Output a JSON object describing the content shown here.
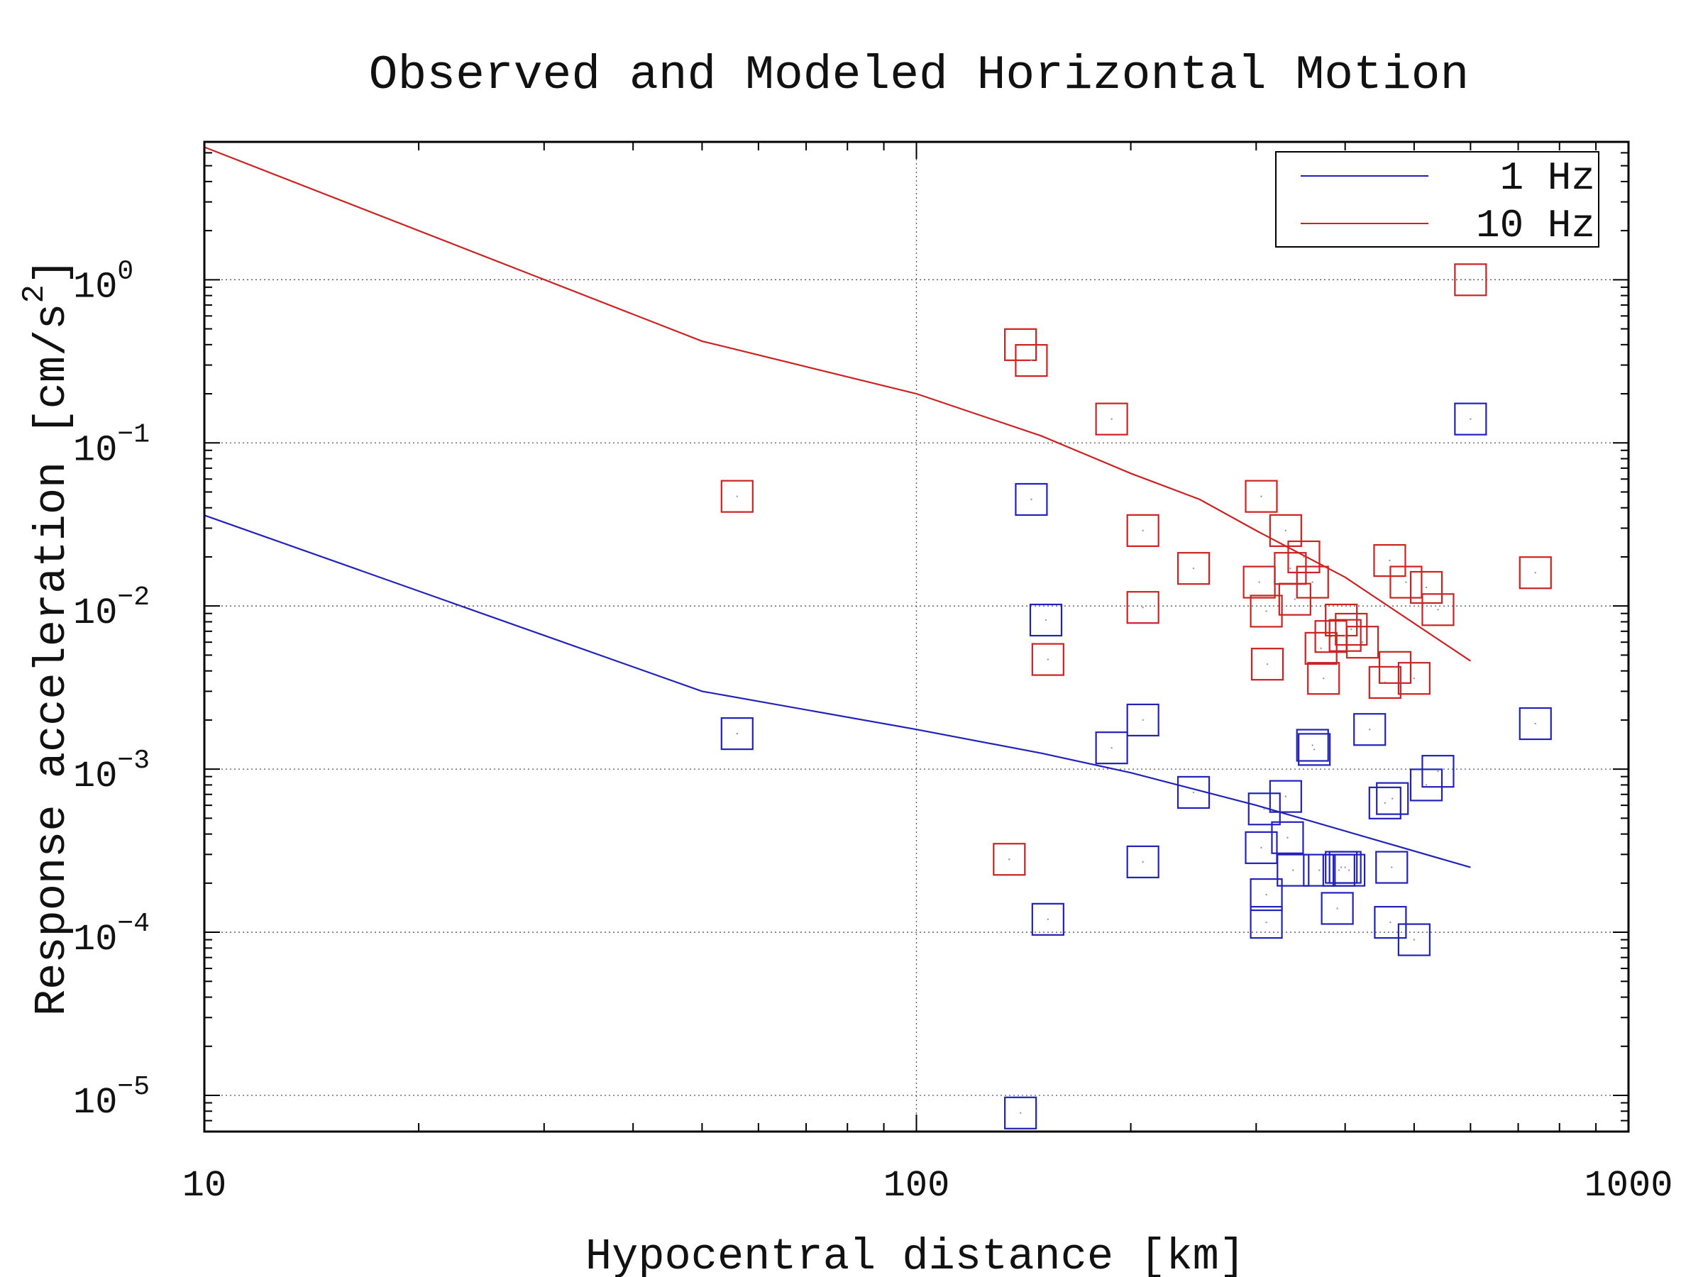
{
  "chart_data": {
    "type": "scatter",
    "title": "Observed and Modeled Horizontal Motion",
    "xlabel": "Hypocentral distance [km]",
    "ylabel": "Response acceleration [cm/s^2]",
    "ylabel_base": "Response acceleration [cm/s",
    "ylabel_sup": "2",
    "ylabel_end": "]",
    "x_scale": "log",
    "y_scale": "log",
    "xlim": [
      10,
      1000
    ],
    "ylim": [
      6e-06,
      7
    ],
    "grid": true,
    "legend_position": "top-right",
    "x_ticks": [
      {
        "value": 10,
        "label": "10"
      },
      {
        "value": 100,
        "label": "100"
      },
      {
        "value": 1000,
        "label": "1000"
      }
    ],
    "y_ticks": [
      {
        "value": 1,
        "base": "10",
        "exp": "0"
      },
      {
        "value": 0.1,
        "base": "10",
        "exp": "−1"
      },
      {
        "value": 0.01,
        "base": "10",
        "exp": "−2"
      },
      {
        "value": 0.001,
        "base": "10",
        "exp": "−3"
      },
      {
        "value": 0.0001,
        "base": "10",
        "exp": "−4"
      },
      {
        "value": 1e-05,
        "base": "10",
        "exp": "−5"
      }
    ],
    "series": [
      {
        "name": "1 Hz",
        "color": "#2222bb",
        "model": {
          "x": [
            10,
            50,
            100,
            150,
            200,
            300,
            600
          ],
          "y": [
            0.036,
            0.003,
            0.00175,
            0.00125,
            0.00095,
            0.0006,
            0.00025
          ]
        },
        "observed": {
          "x": [
            56,
            145,
            152,
            140,
            153,
            188,
            208,
            208,
            245,
            305,
            308,
            310,
            310,
            330,
            332,
            338,
            360,
            362,
            368,
            390,
            392,
            395,
            400,
            405,
            433,
            455,
            463,
            465,
            466,
            500,
            520,
            540,
            600,
            740
          ],
          "y": [
            0.00165,
            0.045,
            0.0082,
            7.8e-06,
            0.00012,
            0.00135,
            0.002,
            0.00027,
            0.00072,
            0.00033,
            0.00057,
            0.00017,
            0.000115,
            0.00068,
            0.00038,
            0.00024,
            0.0014,
            0.00132,
            0.00024,
            0.00014,
            0.00024,
            0.00025,
            0.00025,
            0.00024,
            0.00175,
            0.00062,
            0.000115,
            0.00025,
            0.00066,
            9e-05,
            0.0008,
            0.00097,
            0.14,
            0.0019
          ]
        }
      },
      {
        "name": "10 Hz",
        "color": "#cc2222",
        "model": {
          "x": [
            10,
            50,
            100,
            150,
            200,
            250,
            300,
            400,
            600
          ],
          "y": [
            6.5,
            0.42,
            0.2,
            0.11,
            0.065,
            0.045,
            0.029,
            0.015,
            0.0046
          ]
        },
        "observed": {
          "x": [
            56,
            135,
            140,
            145,
            153,
            188,
            208,
            208,
            245,
            303,
            305,
            310,
            311,
            330,
            335,
            340,
            350,
            360,
            370,
            373,
            382,
            395,
            400,
            408,
            423,
            455,
            462,
            470,
            487,
            500,
            520,
            540,
            600,
            740
          ],
          "y": [
            0.047,
            0.00028,
            0.4,
            0.32,
            0.0047,
            0.14,
            0.0098,
            0.029,
            0.017,
            0.014,
            0.047,
            0.0093,
            0.0044,
            0.029,
            0.017,
            0.011,
            0.02,
            0.014,
            0.0055,
            0.0036,
            0.0065,
            0.0082,
            0.0066,
            0.0072,
            0.006,
            0.0034,
            0.019,
            0.0042,
            0.014,
            0.0036,
            0.013,
            0.0095,
            1.0,
            0.016
          ]
        }
      }
    ]
  }
}
